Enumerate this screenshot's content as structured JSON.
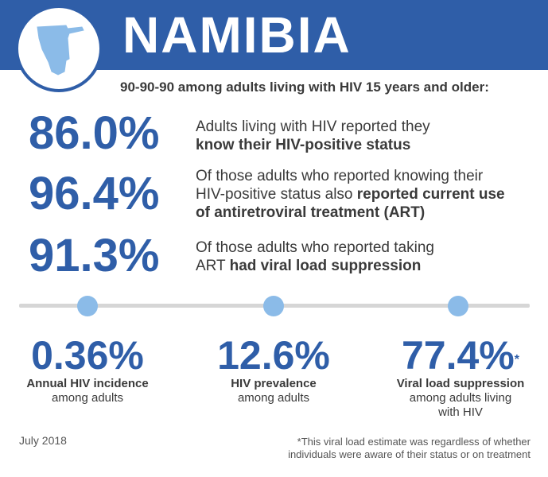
{
  "header": {
    "title": "NAMIBIA",
    "color": "#2f5ea8"
  },
  "subtitle": "90-90-90 among adults living with HIV 15 years and older:",
  "metrics": [
    {
      "value": "86.0%",
      "text_plain_1": "Adults living with HIV reported they",
      "text_bold_1": "know their HIV-positive status"
    },
    {
      "value": "96.4%",
      "text_plain_1": "Of those adults who reported knowing their",
      "text_plain_2": "HIV-positive status also ",
      "text_bold_2": "reported current use",
      "text_bold_3": "of antiretroviral treatment (ART)"
    },
    {
      "value": "91.3%",
      "text_plain_1": "Of those adults who reported taking",
      "text_plain_2": "ART ",
      "text_bold_2": "had viral load suppression"
    }
  ],
  "stats": [
    {
      "value": "0.36%",
      "label_bold": "Annual HIV incidence",
      "label_reg": "among adults"
    },
    {
      "value": "12.6%",
      "label_bold": "HIV prevalence",
      "label_reg": "among adults"
    },
    {
      "value": "77.4%",
      "asterisk": "*",
      "label_bold": "Viral load suppression",
      "label_reg": "among adults living",
      "label_reg_2": "with HIV"
    }
  ],
  "footer": {
    "date": "July 2018",
    "footnote_1": "*This viral load estimate was regardless of whether",
    "footnote_2": "individuals were aware of their status or on treatment"
  },
  "colors": {
    "accent": "#2f5ea8",
    "dot": "#8bbbe8",
    "divider": "#d6d6d6",
    "text": "#3a3a3a"
  },
  "icons": [
    "namibia-map-icon"
  ]
}
